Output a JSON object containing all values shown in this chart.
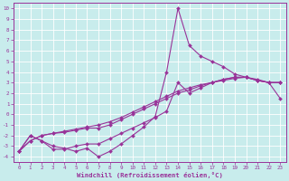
{
  "xlabel": "Windchill (Refroidissement éolien,°C)",
  "bg_color": "#c8ecec",
  "grid_color": "#b0d8d8",
  "line_color": "#993399",
  "marker": "D",
  "markersize": 2.0,
  "linewidth": 0.8,
  "xlim": [
    -0.5,
    23.5
  ],
  "ylim": [
    -4.5,
    10.5
  ],
  "xticks": [
    0,
    1,
    2,
    3,
    4,
    5,
    6,
    7,
    8,
    9,
    10,
    11,
    12,
    13,
    14,
    15,
    16,
    17,
    18,
    19,
    20,
    21,
    22,
    23
  ],
  "yticks": [
    10,
    9,
    8,
    7,
    6,
    5,
    4,
    3,
    2,
    1,
    0,
    -1,
    -2,
    -3,
    -4
  ],
  "series": [
    {
      "x": [
        0,
        1,
        2,
        3,
        4,
        5,
        6,
        7,
        8,
        9,
        10,
        11,
        12,
        13,
        14,
        15,
        16,
        17,
        18,
        19,
        20,
        21,
        22,
        23
      ],
      "y": [
        -3.5,
        -2.0,
        -2.5,
        -3.0,
        -3.2,
        -3.5,
        -3.2,
        -4.0,
        -3.5,
        -2.8,
        -2.0,
        -1.2,
        -0.2,
        4.0,
        10.0,
        6.5,
        5.5,
        5.0,
        4.5,
        3.8,
        3.5,
        3.2,
        3.0,
        1.5
      ]
    },
    {
      "x": [
        0,
        1,
        2,
        3,
        4,
        5,
        6,
        7,
        8,
        9,
        10,
        11,
        12,
        13,
        14,
        15,
        16,
        17,
        18,
        19,
        20,
        21,
        22,
        23
      ],
      "y": [
        -3.5,
        -2.0,
        -2.5,
        -3.3,
        -3.3,
        -3.0,
        -2.8,
        -2.8,
        -2.3,
        -1.8,
        -1.3,
        -0.8,
        -0.3,
        0.3,
        3.0,
        2.0,
        2.5,
        3.0,
        3.3,
        3.5,
        3.5,
        3.3,
        3.0,
        3.0
      ]
    },
    {
      "x": [
        0,
        1,
        2,
        3,
        4,
        5,
        6,
        7,
        8,
        9,
        10,
        11,
        12,
        13,
        14,
        15,
        16,
        17,
        18,
        19,
        20,
        21,
        22,
        23
      ],
      "y": [
        -3.5,
        -2.5,
        -2.0,
        -1.8,
        -1.7,
        -1.5,
        -1.3,
        -1.3,
        -1.0,
        -0.5,
        0.0,
        0.5,
        1.0,
        1.5,
        2.0,
        2.3,
        2.7,
        3.0,
        3.3,
        3.5,
        3.5,
        3.2,
        3.0,
        3.0
      ]
    },
    {
      "x": [
        0,
        1,
        2,
        3,
        4,
        5,
        6,
        7,
        8,
        9,
        10,
        11,
        12,
        13,
        14,
        15,
        16,
        17,
        18,
        19,
        20,
        21,
        22,
        23
      ],
      "y": [
        -3.5,
        -2.5,
        -2.0,
        -1.8,
        -1.6,
        -1.4,
        -1.2,
        -1.0,
        -0.7,
        -0.3,
        0.2,
        0.7,
        1.2,
        1.7,
        2.2,
        2.5,
        2.8,
        3.0,
        3.2,
        3.4,
        3.5,
        3.2,
        3.0,
        3.0
      ]
    }
  ]
}
